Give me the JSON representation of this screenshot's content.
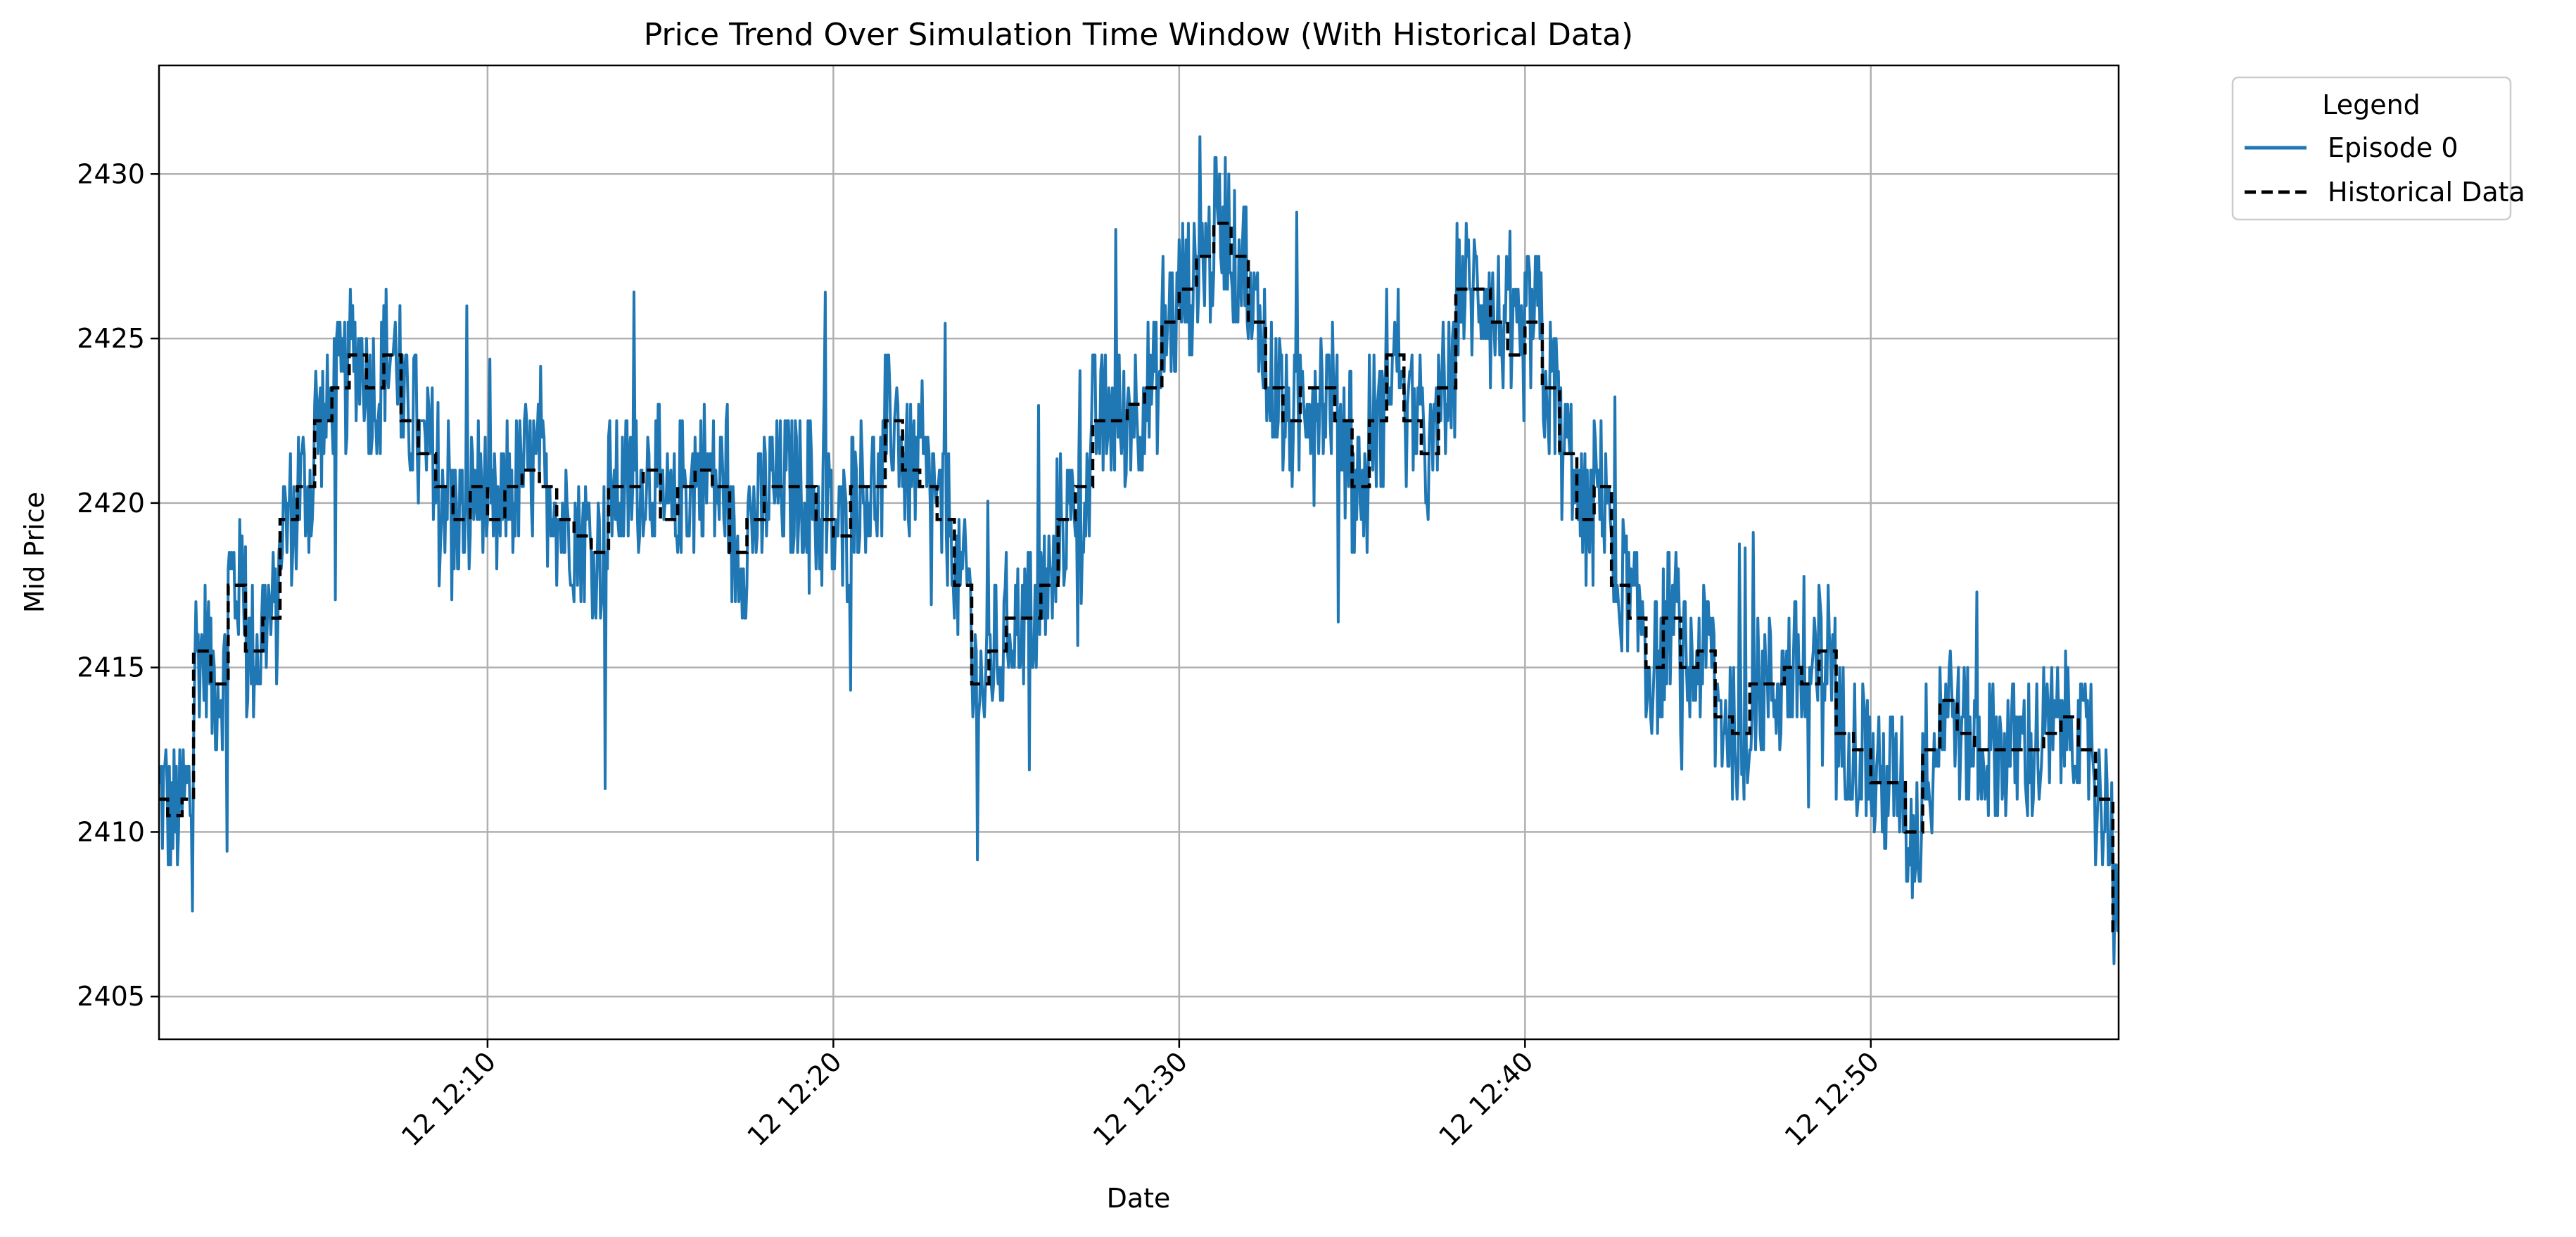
{
  "chart_data": {
    "type": "line",
    "title": "Price Trend Over Simulation Time Window (With Historical Data)",
    "xlabel": "Date",
    "ylabel": "Mid Price",
    "x_axis": "time",
    "xlim": [
      "12:00:30",
      "12:57:10"
    ],
    "ylim": [
      2403.7,
      2433.3
    ],
    "grid": true,
    "y_ticks": [
      2405,
      2410,
      2415,
      2420,
      2425,
      2430
    ],
    "x_ticks": [
      {
        "value": "12:10",
        "label": "12 12:10"
      },
      {
        "value": "12:20",
        "label": "12 12:20"
      },
      {
        "value": "12:30",
        "label": "12 12:30"
      },
      {
        "value": "12:40",
        "label": "12 12:40"
      },
      {
        "value": "12:50",
        "label": "12 12:50"
      }
    ],
    "legend": {
      "title": "Legend",
      "placement": "outside-top-right",
      "entries": [
        {
          "label": "Episode 0",
          "style": "solid",
          "color": "#1f77b4"
        },
        {
          "label": "Historical Data",
          "style": "dashed",
          "color": "#000000"
        }
      ]
    },
    "series": [
      {
        "name": "Historical Data",
        "style": "dashed-step",
        "color": "#000000",
        "points": [
          [
            "12:00:30",
            2411.0
          ],
          [
            "12:00:45",
            2410.5
          ],
          [
            "12:01:10",
            2411.0
          ],
          [
            "12:01:30",
            2415.5
          ],
          [
            "12:02:00",
            2414.5
          ],
          [
            "12:02:30",
            2417.5
          ],
          [
            "12:03:00",
            2415.5
          ],
          [
            "12:03:30",
            2416.5
          ],
          [
            "12:04:00",
            2419.5
          ],
          [
            "12:04:30",
            2420.5
          ],
          [
            "12:05:00",
            2422.5
          ],
          [
            "12:05:30",
            2423.5
          ],
          [
            "12:06:00",
            2424.5
          ],
          [
            "12:06:30",
            2423.5
          ],
          [
            "12:07:00",
            2424.5
          ],
          [
            "12:07:30",
            2422.5
          ],
          [
            "12:08:00",
            2421.5
          ],
          [
            "12:08:30",
            2420.5
          ],
          [
            "12:09:00",
            2419.5
          ],
          [
            "12:09:30",
            2420.5
          ],
          [
            "12:10:00",
            2419.5
          ],
          [
            "12:10:30",
            2420.5
          ],
          [
            "12:11:00",
            2421.0
          ],
          [
            "12:11:30",
            2420.5
          ],
          [
            "12:12:00",
            2419.5
          ],
          [
            "12:12:30",
            2419.0
          ],
          [
            "12:13:00",
            2418.5
          ],
          [
            "12:13:30",
            2420.5
          ],
          [
            "12:14:00",
            2420.5
          ],
          [
            "12:14:30",
            2421.0
          ],
          [
            "12:15:00",
            2419.5
          ],
          [
            "12:15:30",
            2420.5
          ],
          [
            "12:16:00",
            2421.0
          ],
          [
            "12:16:30",
            2420.5
          ],
          [
            "12:17:00",
            2418.5
          ],
          [
            "12:17:30",
            2419.5
          ],
          [
            "12:18:00",
            2420.5
          ],
          [
            "12:18:30",
            2420.5
          ],
          [
            "12:19:00",
            2420.5
          ],
          [
            "12:19:30",
            2419.5
          ],
          [
            "12:20:00",
            2419.0
          ],
          [
            "12:20:30",
            2420.5
          ],
          [
            "12:21:00",
            2420.5
          ],
          [
            "12:21:30",
            2422.5
          ],
          [
            "12:22:00",
            2421.0
          ],
          [
            "12:22:30",
            2420.5
          ],
          [
            "12:23:00",
            2419.5
          ],
          [
            "12:23:30",
            2417.5
          ],
          [
            "12:24:00",
            2414.5
          ],
          [
            "12:24:30",
            2415.5
          ],
          [
            "12:25:00",
            2416.5
          ],
          [
            "12:25:30",
            2416.5
          ],
          [
            "12:26:00",
            2417.5
          ],
          [
            "12:26:30",
            2419.5
          ],
          [
            "12:27:00",
            2420.5
          ],
          [
            "12:27:30",
            2422.5
          ],
          [
            "12:28:00",
            2422.5
          ],
          [
            "12:28:30",
            2423.0
          ],
          [
            "12:29:00",
            2423.5
          ],
          [
            "12:29:30",
            2425.5
          ],
          [
            "12:30:00",
            2426.5
          ],
          [
            "12:30:30",
            2427.5
          ],
          [
            "12:31:00",
            2428.5
          ],
          [
            "12:31:30",
            2427.5
          ],
          [
            "12:32:00",
            2425.5
          ],
          [
            "12:32:30",
            2423.5
          ],
          [
            "12:33:00",
            2422.5
          ],
          [
            "12:33:30",
            2423.5
          ],
          [
            "12:34:00",
            2423.5
          ],
          [
            "12:34:30",
            2422.5
          ],
          [
            "12:35:00",
            2420.5
          ],
          [
            "12:35:30",
            2422.5
          ],
          [
            "12:36:00",
            2424.5
          ],
          [
            "12:36:30",
            2422.5
          ],
          [
            "12:37:00",
            2421.5
          ],
          [
            "12:37:30",
            2423.5
          ],
          [
            "12:38:00",
            2426.5
          ],
          [
            "12:38:30",
            2426.5
          ],
          [
            "12:39:00",
            2425.5
          ],
          [
            "12:39:30",
            2424.5
          ],
          [
            "12:40:00",
            2425.5
          ],
          [
            "12:40:30",
            2423.5
          ],
          [
            "12:41:00",
            2421.5
          ],
          [
            "12:41:30",
            2419.5
          ],
          [
            "12:42:00",
            2420.5
          ],
          [
            "12:42:30",
            2417.5
          ],
          [
            "12:43:00",
            2416.5
          ],
          [
            "12:43:30",
            2415.0
          ],
          [
            "12:44:00",
            2416.5
          ],
          [
            "12:44:30",
            2415.0
          ],
          [
            "12:45:00",
            2415.5
          ],
          [
            "12:45:30",
            2413.5
          ],
          [
            "12:46:00",
            2413.0
          ],
          [
            "12:46:30",
            2414.5
          ],
          [
            "12:47:00",
            2414.5
          ],
          [
            "12:47:30",
            2415.0
          ],
          [
            "12:48:00",
            2414.5
          ],
          [
            "12:48:30",
            2415.5
          ],
          [
            "12:49:00",
            2413.0
          ],
          [
            "12:49:30",
            2412.5
          ],
          [
            "12:50:00",
            2411.5
          ],
          [
            "12:50:30",
            2411.5
          ],
          [
            "12:51:00",
            2410.0
          ],
          [
            "12:51:30",
            2412.5
          ],
          [
            "12:52:00",
            2414.0
          ],
          [
            "12:52:30",
            2413.0
          ],
          [
            "12:53:00",
            2412.5
          ],
          [
            "12:53:30",
            2412.5
          ],
          [
            "12:54:00",
            2412.5
          ],
          [
            "12:54:30",
            2412.5
          ],
          [
            "12:55:00",
            2413.0
          ],
          [
            "12:55:30",
            2413.5
          ],
          [
            "12:56:00",
            2412.5
          ],
          [
            "12:56:30",
            2411.0
          ],
          [
            "12:57:00",
            2407.0
          ],
          [
            "12:57:10",
            2407.0
          ]
        ]
      },
      {
        "name": "Episode 0",
        "style": "solid-noisy",
        "color": "#1f77b4",
        "noise_amplitude": 2.2,
        "sample_step_seconds": 2
      }
    ]
  }
}
